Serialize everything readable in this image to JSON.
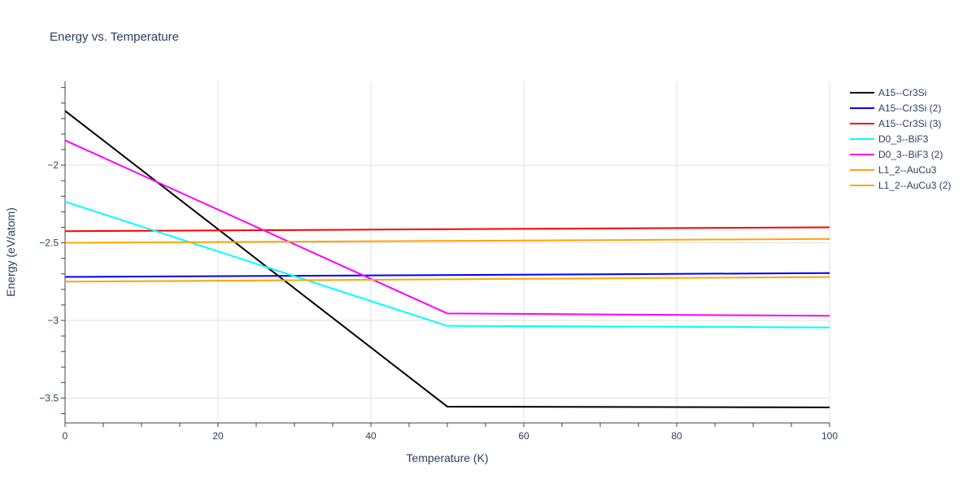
{
  "chart_data": {
    "type": "line",
    "title": "Energy vs. Temperature",
    "xlabel": "Temperature (K)",
    "ylabel": "Energy (eV/atom)",
    "xlim": [
      0,
      100
    ],
    "ylim": [
      -3.66,
      -1.46
    ],
    "grid": true,
    "legend_position": "right",
    "x_ticks": [
      0,
      20,
      40,
      60,
      80,
      100
    ],
    "x_tick_labels": [
      "0",
      "20",
      "40",
      "60",
      "80",
      "100"
    ],
    "y_ticks": [
      -2,
      -2.5,
      -3,
      -3.5
    ],
    "y_tick_labels": [
      "−2",
      "−2.5",
      "−3",
      "−3.5"
    ],
    "series": [
      {
        "name": "A15--Cr3Si",
        "color": "#000000",
        "x": [
          0,
          50,
          100
        ],
        "y": [
          -1.65,
          -3.555,
          -3.56
        ]
      },
      {
        "name": "A15--Cr3Si (2)",
        "color": "#0000ff",
        "x": [
          0,
          100
        ],
        "y": [
          -2.72,
          -2.695
        ]
      },
      {
        "name": "A15--Cr3Si (3)",
        "color": "#ff0000",
        "x": [
          0,
          100
        ],
        "y": [
          -2.425,
          -2.4
        ]
      },
      {
        "name": "D0_3--BiF3",
        "color": "#00ffff",
        "x": [
          0,
          50,
          100
        ],
        "y": [
          -2.235,
          -3.035,
          -3.045
        ]
      },
      {
        "name": "D0_3--BiF3 (2)",
        "color": "#ff00ff",
        "x": [
          0,
          50,
          100
        ],
        "y": [
          -1.84,
          -2.955,
          -2.97
        ]
      },
      {
        "name": "L1_2--AuCu3",
        "color": "#ffa500",
        "x": [
          0,
          100
        ],
        "y": [
          -2.5,
          -2.475
        ]
      },
      {
        "name": "L1_2--AuCu3 (2)",
        "color": "#ffa500",
        "x": [
          0,
          100
        ],
        "y": [
          -2.75,
          -2.72
        ]
      }
    ]
  }
}
